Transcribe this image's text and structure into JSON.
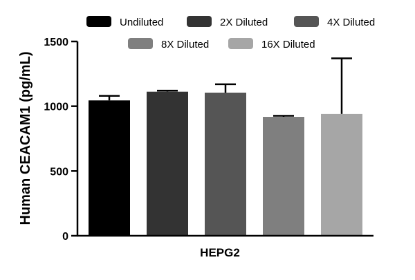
{
  "chart_data": {
    "type": "bar",
    "categories": [
      "HEPG2"
    ],
    "series": [
      {
        "name": "Undiluted",
        "color": "#000000",
        "values": [
          1045
        ],
        "error": [
          35
        ]
      },
      {
        "name": "2X Diluted",
        "color": "#333333",
        "values": [
          1112
        ],
        "error": [
          8
        ]
      },
      {
        "name": "4X Diluted",
        "color": "#555555",
        "values": [
          1105
        ],
        "error": [
          65
        ]
      },
      {
        "name": "8X Diluted",
        "color": "#7f7f7f",
        "values": [
          918
        ],
        "error": [
          8
        ]
      },
      {
        "name": "16X Diluted",
        "color": "#a6a6a6",
        "values": [
          940
        ],
        "error": [
          430
        ]
      }
    ],
    "title": "",
    "xlabel": "",
    "ylabel": "Human CEACAM1 (pg/mL)",
    "ylim": [
      0,
      1500
    ],
    "yticks": [
      0,
      500,
      1000,
      1500
    ],
    "ytick_labels": [
      "0",
      "500",
      "1000",
      "1500"
    ],
    "grid": false,
    "legend_position": "top"
  }
}
